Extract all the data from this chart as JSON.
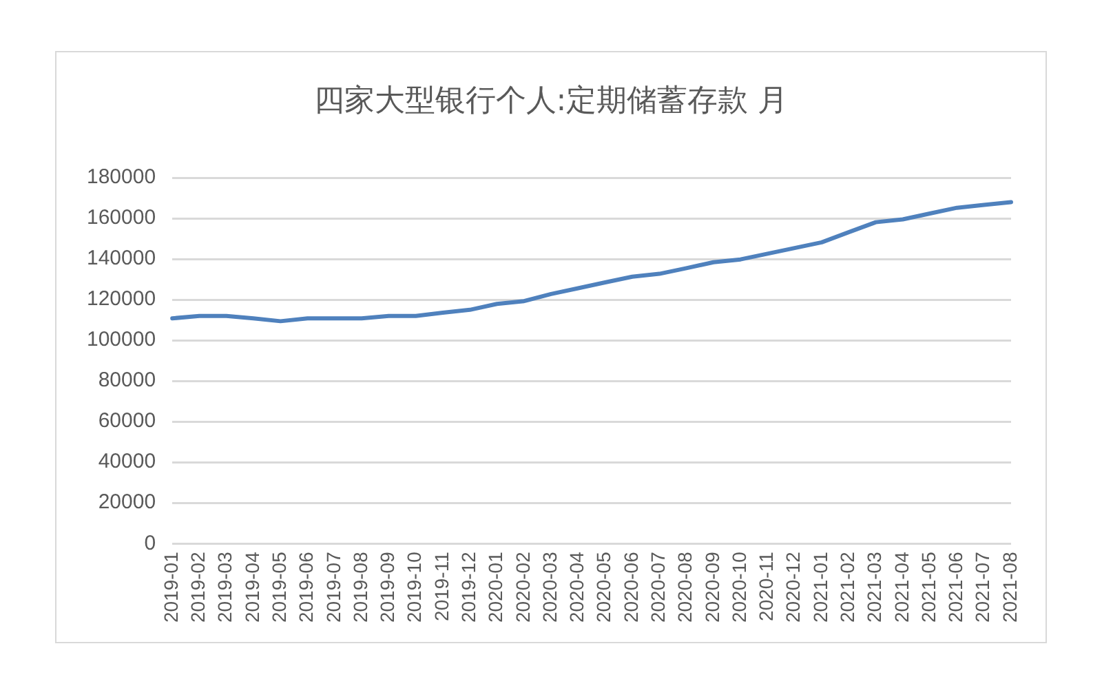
{
  "chart_data": {
    "type": "line",
    "title": "四家大型银行个人:定期储蓄存款 月",
    "categories": [
      "2019-01",
      "2019-02",
      "2019-03",
      "2019-04",
      "2019-05",
      "2019-06",
      "2019-07",
      "2019-08",
      "2019-09",
      "2019-10",
      "2019-11",
      "2019-12",
      "2020-01",
      "2020-02",
      "2020-03",
      "2020-04",
      "2020-05",
      "2020-06",
      "2020-07",
      "2020-08",
      "2020-09",
      "2020-10",
      "2020-11",
      "2020-12",
      "2021-01",
      "2021-02",
      "2021-03",
      "2021-04",
      "2021-05",
      "2021-06",
      "2021-07",
      "2021-08"
    ],
    "series": [
      {
        "color": "#4f81bd",
        "values": [
          110800,
          112000,
          112000,
          110800,
          109400,
          110800,
          110800,
          110800,
          112000,
          112000,
          113600,
          115000,
          117900,
          119300,
          122800,
          125600,
          128500,
          131300,
          132700,
          135500,
          138400,
          139800,
          142600,
          145400,
          148200,
          153200,
          158100,
          159500,
          162400,
          165200,
          166600,
          168000
        ]
      }
    ],
    "ylim": [
      0,
      180000
    ],
    "yticks": [
      0,
      20000,
      40000,
      60000,
      80000,
      100000,
      120000,
      140000,
      160000,
      180000
    ],
    "grid": "y",
    "legend": false,
    "marker": "none",
    "line_style": "solid"
  }
}
